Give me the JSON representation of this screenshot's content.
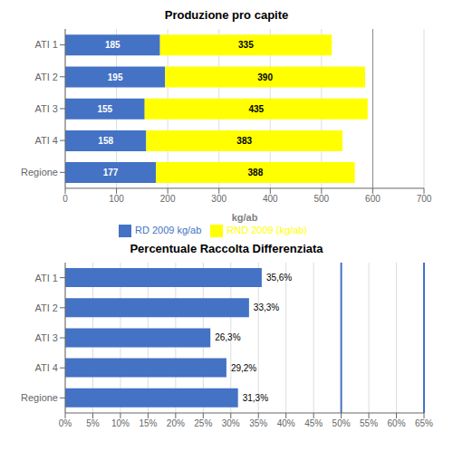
{
  "chart_data": [
    {
      "type": "bar",
      "orientation": "horizontal",
      "stacked": true,
      "title": "Produzione pro capite",
      "xlabel": "kg/ab",
      "categories": [
        "ATI 1",
        "ATI 2",
        "ATI 3",
        "ATI 4",
        "Regione"
      ],
      "series": [
        {
          "name": "RD 2009 kg/ab",
          "color": "#4472C4",
          "values": [
            185,
            195,
            155,
            158,
            177
          ]
        },
        {
          "name": "RND 2009 (kg/ab)",
          "color": "#FFFF00",
          "values": [
            335,
            390,
            435,
            383,
            388
          ]
        }
      ],
      "xlim": [
        0,
        700
      ],
      "xticks": [
        0,
        100,
        200,
        300,
        400,
        500,
        600,
        700
      ],
      "grid": true,
      "data_labels": true,
      "legend": "bottom",
      "reference_lines": [
        {
          "value": 600
        }
      ]
    },
    {
      "type": "bar",
      "orientation": "horizontal",
      "title": "Percentuale Raccolta Differenziata",
      "categories": [
        "ATI 1",
        "ATI 2",
        "ATI 3",
        "ATI 4",
        "Regione"
      ],
      "values": [
        0.356,
        0.333,
        0.263,
        0.292,
        0.313
      ],
      "value_labels": [
        "35,6%",
        "33,3%",
        "26,3%",
        "29,2%",
        "31,3%"
      ],
      "color": "#4472C4",
      "xlim": [
        0,
        0.65
      ],
      "xticks": [
        {
          "value": 0,
          "label": "0%"
        },
        {
          "value": 0.05,
          "label": "5%"
        },
        {
          "value": 0.1,
          "label": "10%"
        },
        {
          "value": 0.15,
          "label": "15%"
        },
        {
          "value": 0.2,
          "label": "20%"
        },
        {
          "value": 0.25,
          "label": "25%"
        },
        {
          "value": 0.3,
          "label": "30%"
        },
        {
          "value": 0.35,
          "label": "35%"
        },
        {
          "value": 0.4,
          "label": "40%"
        },
        {
          "value": 0.45,
          "label": "45%"
        },
        {
          "value": 0.5,
          "label": "50%"
        },
        {
          "value": 0.55,
          "label": "55%"
        },
        {
          "value": 0.6,
          "label": "60%"
        },
        {
          "value": 0.65,
          "label": "65%"
        }
      ],
      "grid": true,
      "data_labels": true,
      "reference_lines": [
        {
          "value": 0.5,
          "color": "#4472C4"
        },
        {
          "value": 0.65,
          "color": "#4472C4"
        }
      ]
    }
  ]
}
